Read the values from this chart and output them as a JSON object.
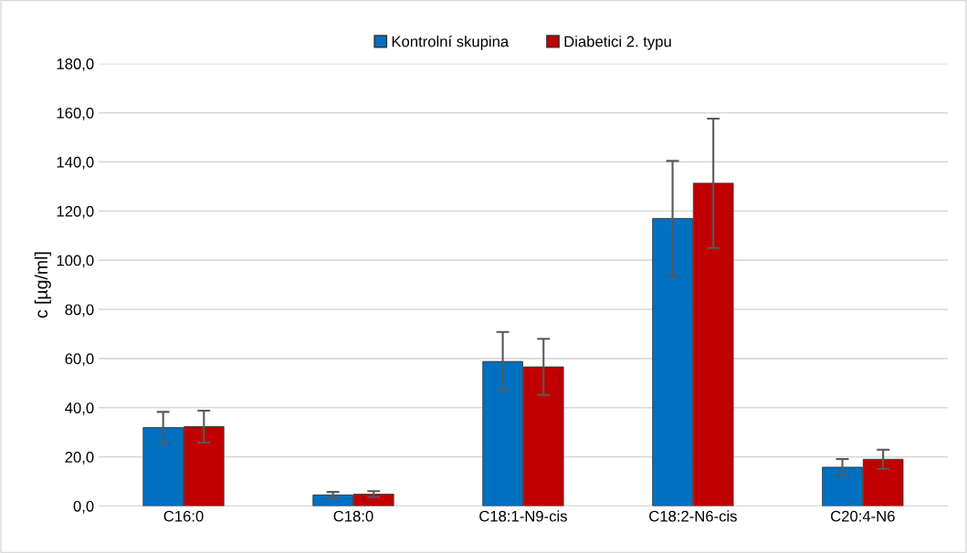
{
  "chart_data": {
    "type": "bar",
    "ylabel": "c [µg/ml]",
    "categories": [
      "C16:0",
      "C18:0",
      "C18:1-N9-cis",
      "C18:2-N6-cis",
      "C20:4-N6"
    ],
    "series": [
      {
        "name": "Kontrolní skupina",
        "color": "#0070c0",
        "values": [
          31.9,
          4.5,
          58.8,
          117.0,
          15.8
        ],
        "errors": [
          6.4,
          1.2,
          12.0,
          23.4,
          3.3
        ]
      },
      {
        "name": "Diabetici 2. typu",
        "color": "#c00000",
        "values": [
          32.3,
          4.8,
          56.6,
          131.3,
          19.0
        ],
        "errors": [
          6.5,
          1.2,
          11.4,
          26.3,
          3.9
        ]
      }
    ],
    "ylim": [
      0,
      180
    ],
    "yticks": [
      {
        "value": 0,
        "label": "0,0"
      },
      {
        "value": 20,
        "label": "20,0"
      },
      {
        "value": 40,
        "label": "40,0"
      },
      {
        "value": 60,
        "label": "60,0"
      },
      {
        "value": 80,
        "label": "80,0"
      },
      {
        "value": 100,
        "label": "100,0"
      },
      {
        "value": 120,
        "label": "120,0"
      },
      {
        "value": 140,
        "label": "140,0"
      },
      {
        "value": 160,
        "label": "160,0"
      },
      {
        "value": 180,
        "label": "180,0"
      }
    ],
    "grid": "y",
    "legend": "top"
  }
}
